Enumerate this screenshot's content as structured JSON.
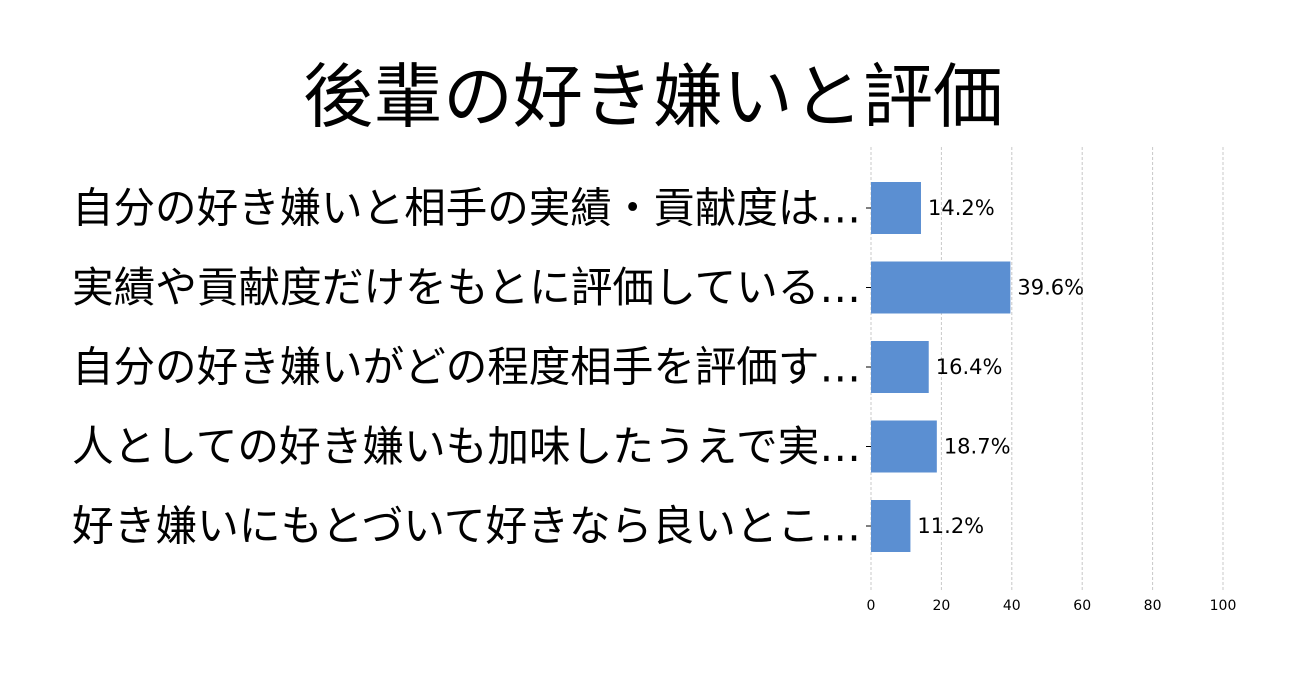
{
  "chart_data": {
    "type": "bar",
    "orientation": "horizontal",
    "title": "後輩の好き嫌いと評価",
    "categories": [
      "自分の好き嫌いと相手の実績・貢献度は…",
      "実績や貢献度だけをもとに評価している…",
      "自分の好き嫌いがどの程度相手を評価す…",
      "人としての好き嫌いも加味したうえで実…",
      "好き嫌いにもとづいて好きなら良いとこ…"
    ],
    "values": [
      14.2,
      39.6,
      16.4,
      18.7,
      11.2
    ],
    "value_labels": [
      "14.2%",
      "39.6%",
      "16.4%",
      "18.7%",
      "11.2%"
    ],
    "xlim": [
      0,
      100
    ],
    "xticks": [
      0,
      20,
      40,
      60,
      80,
      100
    ],
    "xtick_labels": [
      "0",
      "20",
      "40",
      "60",
      "80",
      "100"
    ],
    "xlabel": "",
    "ylabel": "",
    "grid": true,
    "bar_color": "#5b8fd2",
    "grid_color": "#c8c8c8",
    "legend": "none"
  }
}
